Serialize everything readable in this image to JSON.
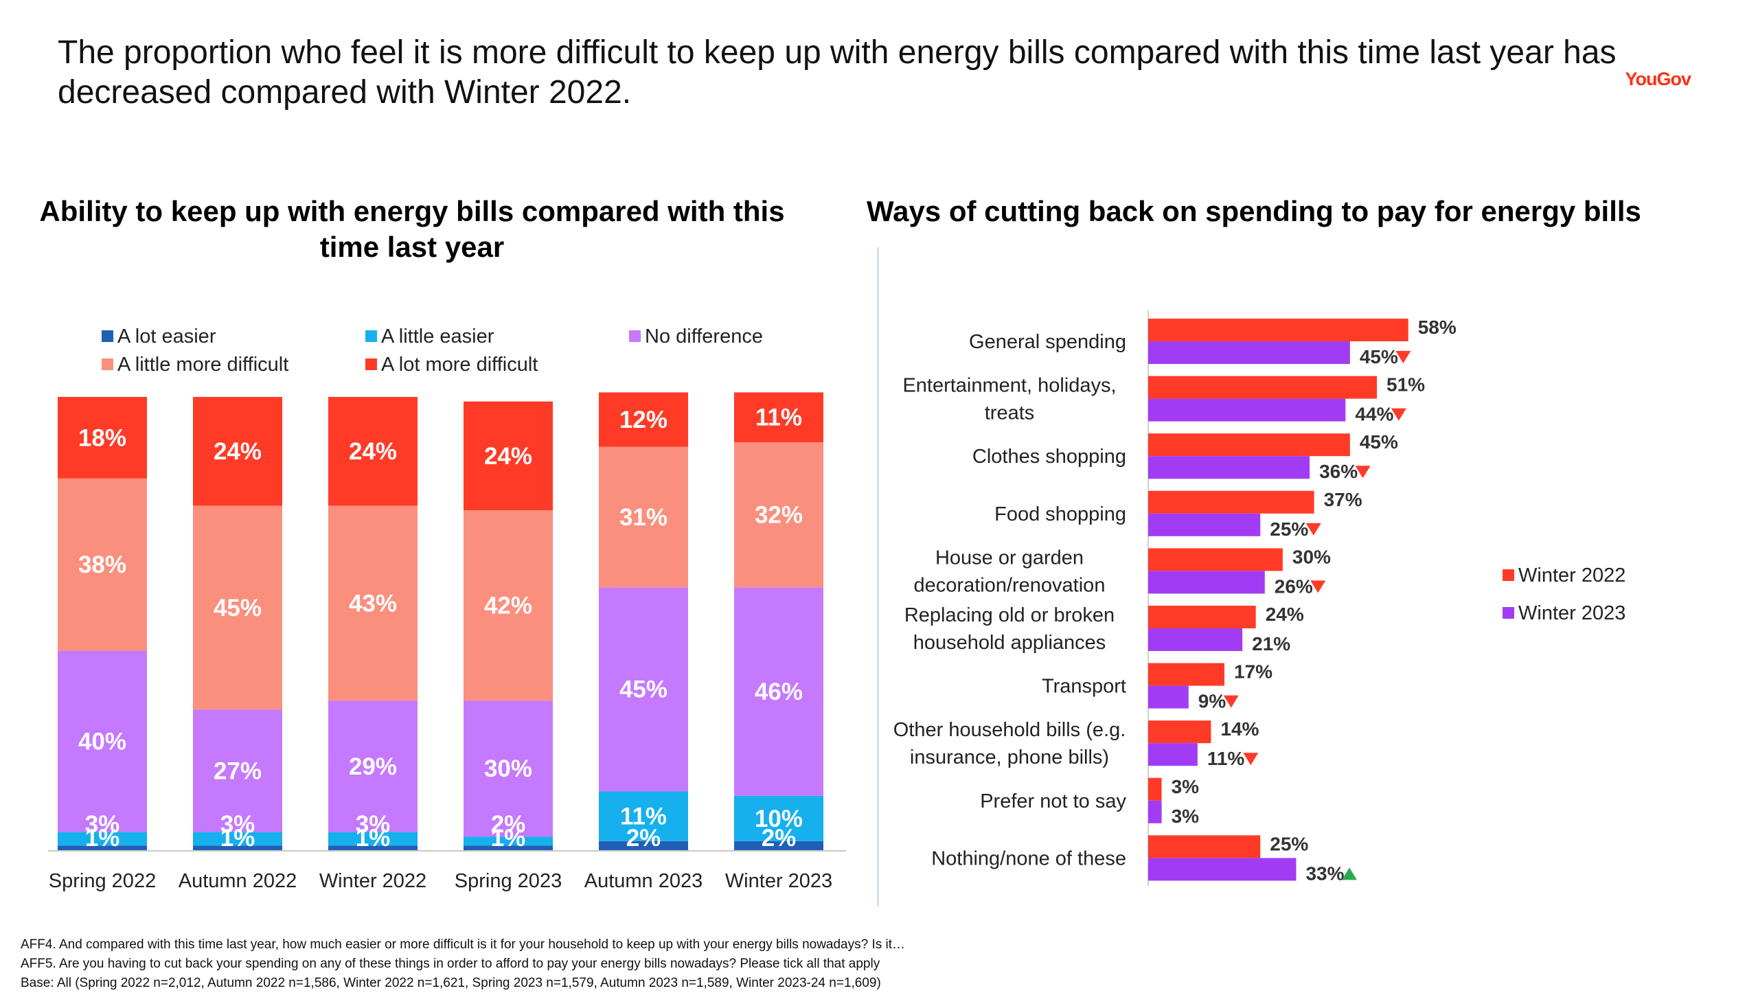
{
  "headline": "The proportion who feel it is more difficult to keep up with energy bills compared with this time last year has decreased compared with Winter 2022.",
  "logo_text": "YouGov",
  "colors": {
    "lot_easier": "#1f5fb5",
    "little_easier": "#16b0ee",
    "no_difference": "#c479ff",
    "little_more_difficult": "#fb8f7e",
    "lot_more_difficult": "#ff3b28",
    "winter_2022": "#ff3b28",
    "winter_2023": "#a23cf4",
    "down_arrow": "#ff3b28",
    "up_arrow": "#2ea84e"
  },
  "footnotes": [
    "AFF4. And compared with this time last year, how much easier or more difficult is it for your household to keep up with your energy bills nowadays? Is it…",
    "AFF5. Are you having to cut back your spending on any of these things in order to afford to pay your energy bills nowadays? Please tick all that apply",
    "Base: All (Spring 2022 n=2,012, Autumn 2022 n=1,586, Winter 2022 n=1,621, Spring 2023 n=1,579, Autumn 2023 n=1,589, Winter 2023-24 n=1,609)"
  ],
  "chart_data": [
    {
      "type": "bar",
      "stacked": true,
      "title": "Ability to keep up with energy bills compared with this time last year",
      "categories": [
        "Spring 2022",
        "Autumn 2022",
        "Winter 2022",
        "Spring 2023",
        "Autumn 2023",
        "Winter 2023"
      ],
      "series": [
        {
          "name": "A lot easier",
          "values": [
            1,
            1,
            1,
            1,
            2,
            2
          ],
          "labels": [
            "1%",
            "1%",
            "1%",
            "1%",
            "2%",
            "2%"
          ]
        },
        {
          "name": "A little easier",
          "values": [
            3,
            3,
            3,
            2,
            11,
            10
          ],
          "labels": [
            "3%",
            "3%",
            "3%",
            "2%",
            "11%",
            "10%"
          ]
        },
        {
          "name": "No difference",
          "values": [
            40,
            27,
            29,
            30,
            45,
            46
          ],
          "labels": [
            "40%",
            "27%",
            "29%",
            "30%",
            "45%",
            "46%"
          ]
        },
        {
          "name": "A little more difficult",
          "values": [
            38,
            45,
            43,
            42,
            31,
            32
          ],
          "labels": [
            "38%",
            "45%",
            "43%",
            "42%",
            "31%",
            "32%"
          ]
        },
        {
          "name": "A lot more difficult",
          "values": [
            18,
            24,
            24,
            24,
            12,
            11
          ],
          "labels": [
            "18%",
            "24%",
            "24%",
            "24%",
            "12%",
            "11%"
          ]
        }
      ],
      "ylim": [
        0,
        100
      ],
      "legend_position": "top"
    },
    {
      "type": "bar",
      "orientation": "horizontal",
      "title": "Ways of cutting back on spending to pay for energy bills",
      "categories": [
        [
          "General spending"
        ],
        [
          "Entertainment, holidays,",
          "treats"
        ],
        [
          "Clothes shopping"
        ],
        [
          "Food shopping"
        ],
        [
          "House or garden",
          "decoration/renovation"
        ],
        [
          "Replacing old or broken",
          "household appliances"
        ],
        [
          "Transport"
        ],
        [
          "Other household bills (e.g.",
          "insurance, phone bills)"
        ],
        [
          "Prefer not to say"
        ],
        [
          "Nothing/none of these"
        ]
      ],
      "series": [
        {
          "name": "Winter 2022",
          "values": [
            58,
            51,
            45,
            37,
            30,
            24,
            17,
            14,
            3,
            25
          ],
          "labels": [
            "58%",
            "51%",
            "45%",
            "37%",
            "30%",
            "24%",
            "17%",
            "14%",
            "3%",
            "25%"
          ]
        },
        {
          "name": "Winter 2023",
          "values": [
            45,
            44,
            36,
            25,
            26,
            21,
            9,
            11,
            3,
            33
          ],
          "labels": [
            "45%",
            "44%",
            "36%",
            "25%",
            "26%",
            "21%",
            "9%",
            "11%",
            "3%",
            "33%"
          ],
          "significance": [
            "down",
            "down",
            "down",
            "down",
            "down",
            "none",
            "down",
            "down",
            "none",
            "up"
          ]
        }
      ],
      "legend_position": "right"
    }
  ]
}
